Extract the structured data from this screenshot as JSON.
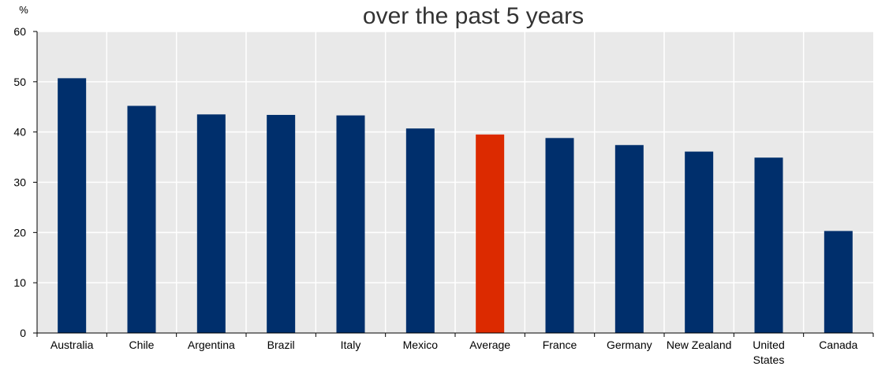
{
  "chart_data": {
    "type": "bar",
    "title": "over the past 5 years",
    "ylabel": "%",
    "ylim": [
      0,
      60
    ],
    "yticks": [
      0,
      10,
      20,
      30,
      40,
      50,
      60
    ],
    "categories": [
      "Australia",
      "Chile",
      "Argentina",
      "Brazil",
      "Italy",
      "Mexico",
      "Average",
      "France",
      "Germany",
      "New Zealand",
      "United States",
      "Canada"
    ],
    "values": [
      50.7,
      45.2,
      43.5,
      43.4,
      43.3,
      40.7,
      39.5,
      38.8,
      37.4,
      36.1,
      34.9,
      20.3
    ],
    "highlight_category": "Average",
    "grid": true
  },
  "colors": {
    "bar": "#002f6c",
    "highlight": "#dc2a00",
    "plot_background": "#e9e9e9",
    "gridline": "#ffffff",
    "axis": "#000000"
  }
}
